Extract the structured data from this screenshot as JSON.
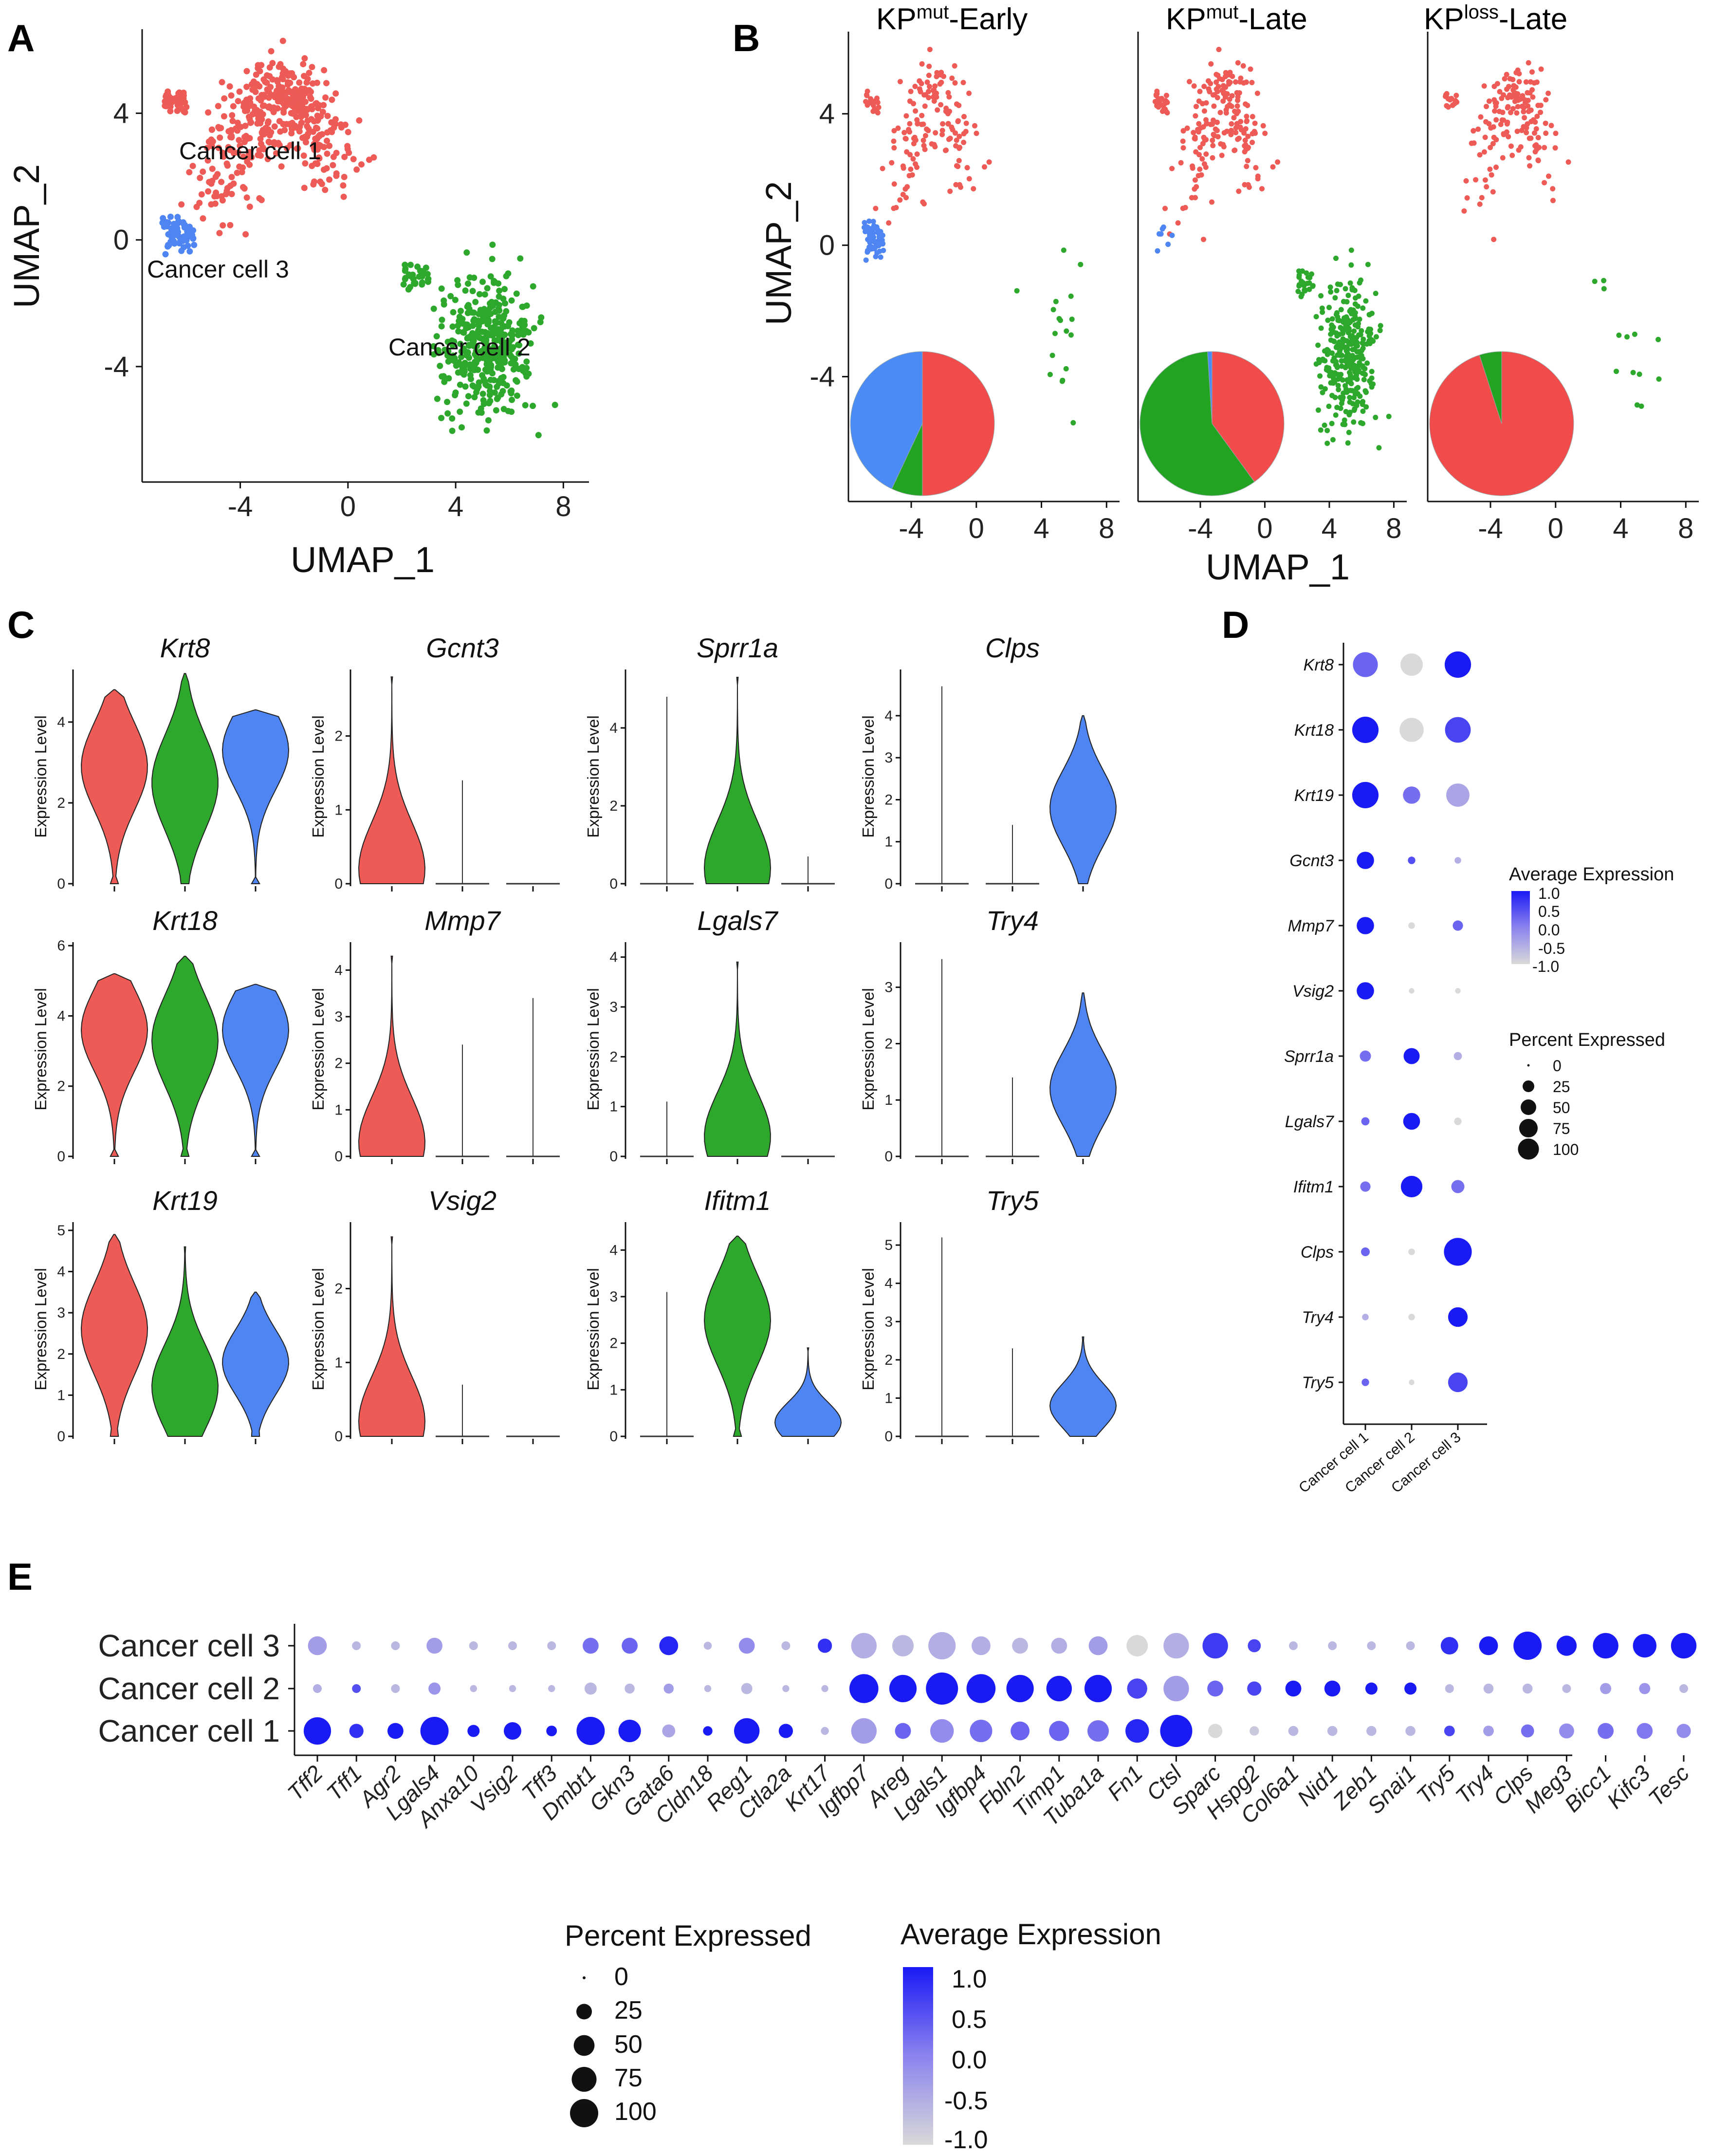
{
  "panels": {
    "A": "A",
    "B": "B",
    "C": "C",
    "D": "D",
    "E": "E"
  },
  "colors": {
    "cancer1": "#EE5A55",
    "cancer2": "#2DA82D",
    "cancer3": "#4F85F2",
    "pie_red": "#F24B4B",
    "pie_green": "#22A322",
    "pie_blue": "#4A8BF5",
    "expr_high": "#1A1AF5",
    "expr_low": "#D3D3D3"
  },
  "panelA": {
    "xlabel": "UMAP_1",
    "ylabel": "UMAP_2",
    "x_ticks": [
      "-4",
      "0",
      "4",
      "8"
    ],
    "y_ticks": [
      "4",
      "0",
      "-4"
    ],
    "cluster_labels": [
      "Cancer cell 1",
      "Cancer cell 2",
      "Cancer cell 3"
    ]
  },
  "panelB": {
    "xlabel": "UMAP_1",
    "ylabel": "UMAP_2",
    "x_ticks": [
      "-4",
      "0",
      "4",
      "8"
    ],
    "y_ticks": [
      "4",
      "0",
      "-4"
    ],
    "facets": [
      {
        "prefix": "KP",
        "sup": "mut",
        "suffix": "-Early"
      },
      {
        "prefix": "KP",
        "sup": "mut",
        "suffix": "-Late"
      },
      {
        "prefix": "KP",
        "sup": "loss",
        "suffix": "-Late"
      }
    ]
  },
  "chart_data": [
    {
      "type": "scatter",
      "panel": "A",
      "title": "",
      "xlabel": "UMAP_1",
      "ylabel": "UMAP_2",
      "xlim": [
        -7.5,
        8.5
      ],
      "ylim": [
        -7.8,
        6.5
      ],
      "clusters": [
        {
          "name": "Cancer cell 1",
          "color": "#EE5A55",
          "center": [
            -2.5,
            2.5
          ],
          "n": 480
        },
        {
          "name": "Cancer cell 2",
          "color": "#2DA82D",
          "center": [
            5,
            -3.5
          ],
          "n": 420
        },
        {
          "name": "Cancer cell 3",
          "color": "#4F85F2",
          "center": [
            -6.2,
            0.2
          ],
          "n": 60
        }
      ]
    },
    {
      "type": "pie",
      "panel": "B",
      "facets": [
        {
          "name": "KPmut-Early",
          "slices": [
            {
              "label": "Cancer cell 1",
              "value": 50
            },
            {
              "label": "Cancer cell 2",
              "value": 7
            },
            {
              "label": "Cancer cell 3",
              "value": 43
            }
          ]
        },
        {
          "name": "KPmut-Late",
          "slices": [
            {
              "label": "Cancer cell 1",
              "value": 40
            },
            {
              "label": "Cancer cell 2",
              "value": 59
            },
            {
              "label": "Cancer cell 3",
              "value": 1
            }
          ]
        },
        {
          "name": "KPloss-Late",
          "slices": [
            {
              "label": "Cancer cell 1",
              "value": 95
            },
            {
              "label": "Cancer cell 2",
              "value": 5
            },
            {
              "label": "Cancer cell 3",
              "value": 0
            }
          ]
        }
      ]
    },
    {
      "type": "violin",
      "panel": "C",
      "ylabel": "Expression Level",
      "groups": [
        "Cancer cell 1",
        "Cancer cell 2",
        "Cancer cell 3"
      ],
      "genes": [
        {
          "gene": "Krt8",
          "ymax": 5.3,
          "yticks": [
            "0",
            "2",
            "4"
          ],
          "max": [
            4.8,
            5.2,
            4.3
          ],
          "mode": [
            2.9,
            2.5,
            3.3
          ]
        },
        {
          "gene": "Gcnt3",
          "ymax": 2.9,
          "yticks": [
            "0",
            "1",
            "2"
          ],
          "max": [
            2.8,
            1.4,
            0
          ],
          "mode": [
            0.2,
            0,
            0
          ]
        },
        {
          "gene": "Sprr1a",
          "ymax": 5.5,
          "yticks": [
            "0",
            "2",
            "4"
          ],
          "max": [
            4.8,
            5.3,
            0.7
          ],
          "mode": [
            0,
            0.4,
            0
          ]
        },
        {
          "gene": "Clps",
          "ymax": 5.1,
          "yticks": [
            "0",
            "1",
            "2",
            "3",
            "4"
          ],
          "max": [
            4.7,
            1.4,
            4.0
          ],
          "mode": [
            0,
            0,
            1.8
          ]
        },
        {
          "gene": "Krt18",
          "ymax": 6.1,
          "yticks": [
            "0",
            "2",
            "4",
            "6"
          ],
          "max": [
            5.2,
            5.7,
            4.9
          ],
          "mode": [
            3.6,
            3.3,
            3.6
          ]
        },
        {
          "gene": "Mmp7",
          "ymax": 4.6,
          "yticks": [
            "0",
            "1",
            "2",
            "3",
            "4"
          ],
          "max": [
            4.3,
            2.4,
            3.4
          ],
          "mode": [
            0.3,
            0,
            0
          ]
        },
        {
          "gene": "Lgals7",
          "ymax": 4.3,
          "yticks": [
            "0",
            "1",
            "2",
            "3",
            "4"
          ],
          "max": [
            1.1,
            3.9,
            0
          ],
          "mode": [
            0,
            0.4,
            0
          ]
        },
        {
          "gene": "Try4",
          "ymax": 3.8,
          "yticks": [
            "0",
            "1",
            "2",
            "3"
          ],
          "max": [
            3.5,
            1.4,
            2.9
          ],
          "mode": [
            0,
            0,
            1.2
          ]
        },
        {
          "gene": "Krt19",
          "ymax": 5.2,
          "yticks": [
            "0",
            "1",
            "2",
            "3",
            "4",
            "5"
          ],
          "max": [
            4.9,
            4.6,
            3.5
          ],
          "mode": [
            2.6,
            1.2,
            1.8
          ]
        },
        {
          "gene": "Vsig2",
          "ymax": 2.9,
          "yticks": [
            "0",
            "1",
            "2"
          ],
          "max": [
            2.7,
            0.7,
            0
          ],
          "mode": [
            0.2,
            0,
            0
          ]
        },
        {
          "gene": "Ifitm1",
          "ymax": 4.6,
          "yticks": [
            "0",
            "1",
            "2",
            "3",
            "4"
          ],
          "max": [
            3.1,
            4.3,
            1.9
          ],
          "mode": [
            0,
            2.5,
            0.3
          ]
        },
        {
          "gene": "Try5",
          "ymax": 5.6,
          "yticks": [
            "0",
            "1",
            "2",
            "3",
            "4",
            "5"
          ],
          "max": [
            5.2,
            2.3,
            2.6
          ],
          "mode": [
            0,
            0,
            0.8
          ]
        }
      ]
    },
    {
      "type": "dotplot",
      "panel": "D",
      "genes": [
        "Krt8",
        "Krt18",
        "Krt19",
        "Gcnt3",
        "Mmp7",
        "Vsig2",
        "Sprr1a",
        "Lgals7",
        "Ifitm1",
        "Clps",
        "Try4",
        "Try5"
      ],
      "groups": [
        "Cancer cell 1",
        "Cancer cell 2",
        "Cancer cell 3"
      ],
      "avg_expression": [
        [
          0.3,
          -1.0,
          1.0
        ],
        [
          1.0,
          -1.0,
          0.6
        ],
        [
          1.0,
          0.2,
          -0.4
        ],
        [
          1.0,
          0.5,
          -0.5
        ],
        [
          1.0,
          -1.0,
          0.3
        ],
        [
          1.0,
          -1.0,
          -1.0
        ],
        [
          0.2,
          1.0,
          -0.5
        ],
        [
          0.3,
          1.0,
          -1.0
        ],
        [
          0.2,
          1.0,
          0.2
        ],
        [
          0.3,
          -1.0,
          1.0
        ],
        [
          -0.5,
          -1.0,
          1.0
        ],
        [
          0.3,
          -1.0,
          0.6
        ]
      ],
      "pct_expressed": [
        [
          70,
          55,
          80
        ],
        [
          80,
          65,
          75
        ],
        [
          80,
          30,
          60
        ],
        [
          30,
          3,
          2
        ],
        [
          30,
          2,
          8
        ],
        [
          30,
          1,
          1
        ],
        [
          10,
          25,
          4
        ],
        [
          4,
          28,
          3
        ],
        [
          8,
          50,
          15
        ],
        [
          5,
          2,
          90
        ],
        [
          2,
          2,
          40
        ],
        [
          3,
          1,
          40
        ]
      ]
    },
    {
      "type": "dotplot",
      "panel": "E",
      "genes": [
        "Tff2",
        "Tff1",
        "Agr2",
        "Lgals4",
        "Anxa10",
        "Vsig2",
        "Tff3",
        "Dmbt1",
        "Gkn3",
        "Gata6",
        "Cldn18",
        "Reg1",
        "Ctla2a",
        "Krt17",
        "Igfbp7",
        "Areg",
        "Lgals1",
        "Igfbp4",
        "Fbln2",
        "Timp1",
        "Tuba1a",
        "Fn1",
        "Ctsl",
        "Sparc",
        "Hspg2",
        "Col6a1",
        "Nid1",
        "Zeb1",
        "Snai1",
        "Try5",
        "Try4",
        "Clps",
        "Meg3",
        "Bicc1",
        "Kifc3",
        "Tesc"
      ],
      "groups": [
        "Cancer cell 3",
        "Cancer cell 2",
        "Cancer cell 1"
      ],
      "avg_expression": [
        [
          -0.3,
          -0.6,
          -0.6,
          -0.3,
          -0.6,
          -0.6,
          -0.6,
          0.2,
          0.3,
          0.9,
          -0.6,
          -0.1,
          -0.6,
          0.8,
          -0.5,
          -0.6,
          -0.5,
          -0.5,
          -0.6,
          -0.5,
          -0.3,
          -1.0,
          -0.5,
          0.7,
          0.6,
          -0.6,
          -0.6,
          -0.6,
          -0.6,
          0.8,
          1.0,
          1.0,
          1.0,
          1.0,
          1.0,
          1.0
        ],
        [
          -0.5,
          0.5,
          -0.6,
          -0.2,
          -0.6,
          -0.6,
          -0.6,
          -0.6,
          -0.6,
          -0.3,
          -0.6,
          -0.6,
          -0.6,
          -0.6,
          1.0,
          1.0,
          1.0,
          1.0,
          1.0,
          1.0,
          1.0,
          0.6,
          -0.3,
          0.3,
          0.6,
          1.0,
          1.0,
          1.0,
          1.0,
          -0.6,
          -0.6,
          -0.6,
          -0.6,
          -0.3,
          -0.2,
          -0.6
        ],
        [
          1.0,
          0.8,
          1.0,
          1.0,
          1.0,
          1.0,
          1.0,
          1.0,
          1.0,
          -0.4,
          1.0,
          1.0,
          1.0,
          -0.6,
          -0.3,
          0.3,
          -0.1,
          0.2,
          0.3,
          0.3,
          0.2,
          0.9,
          1.0,
          -1.0,
          -0.8,
          -0.6,
          -0.6,
          -0.6,
          -0.6,
          0.6,
          -0.3,
          0.2,
          -0.1,
          0.2,
          0.1,
          -0.1
        ]
      ],
      "pct_expressed": [
        [
          30,
          4,
          4,
          20,
          4,
          4,
          4,
          20,
          20,
          30,
          3,
          20,
          4,
          15,
          60,
          40,
          70,
          30,
          20,
          20,
          30,
          40,
          60,
          60,
          12,
          4,
          4,
          4,
          4,
          25,
          30,
          75,
          35,
          60,
          50,
          60
        ],
        [
          4,
          4,
          4,
          10,
          2,
          2,
          2,
          10,
          6,
          6,
          2,
          8,
          2,
          2,
          80,
          70,
          100,
          80,
          70,
          60,
          70,
          35,
          60,
          20,
          15,
          20,
          20,
          10,
          10,
          4,
          6,
          6,
          4,
          8,
          8,
          4
        ],
        [
          70,
          15,
          20,
          75,
          10,
          25,
          7,
          75,
          45,
          12,
          5,
          60,
          15,
          3,
          60,
          20,
          50,
          45,
          30,
          35,
          40,
          50,
          100,
          15,
          5,
          6,
          6,
          6,
          6,
          7,
          7,
          12,
          17,
          20,
          20,
          15
        ]
      ]
    }
  ],
  "panelC": {
    "ylabel": "Expression Level"
  },
  "panelD": {
    "legend_avg_title": "Average Expression",
    "legend_avg_values": [
      "1.0",
      "0.5",
      "0.0",
      "-0.5",
      "-1.0"
    ],
    "legend_pct_title": "Percent Expressed",
    "legend_pct_values": [
      "0",
      "25",
      "50",
      "75",
      "100"
    ]
  },
  "panelE": {
    "legend_pct_title": "Percent Expressed",
    "legend_pct_values": [
      "0",
      "25",
      "50",
      "75",
      "100"
    ],
    "legend_avg_title": "Average Expression",
    "legend_avg_values": [
      "1.0",
      "0.5",
      "0.0",
      "-0.5",
      "-1.0"
    ]
  }
}
